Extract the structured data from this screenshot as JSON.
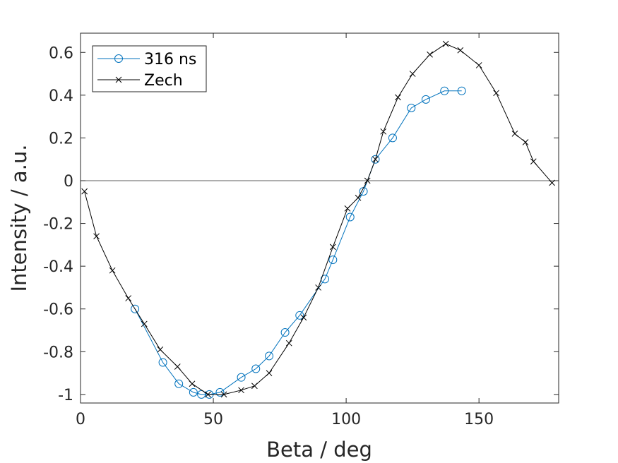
{
  "chart_data": {
    "type": "line",
    "title": "",
    "xlabel": "Beta / deg",
    "ylabel": "Intensity / a.u.",
    "xlim": [
      0,
      180
    ],
    "ylim": [
      -1.04,
      0.69
    ],
    "xticks": [
      0,
      50,
      100,
      150
    ],
    "yticks": [
      -1,
      -0.8,
      -0.6,
      -0.4,
      -0.2,
      0,
      0.2,
      0.4,
      0.6
    ],
    "xtick_labels": [
      "0",
      "50",
      "100",
      "150"
    ],
    "ytick_labels": [
      "-1",
      "-0.8",
      "-0.6",
      "-0.4",
      "-0.2",
      "0",
      "0.2",
      "0.4",
      "0.6"
    ],
    "zero_line": true,
    "grid": false,
    "legend_position": "top-left",
    "series": [
      {
        "name": "316 ns",
        "color": "#0072BD",
        "marker": "circle",
        "x": [
          20.5,
          31,
          37,
          42.5,
          45.5,
          48.5,
          52.5,
          60.5,
          66,
          71,
          77,
          82.5,
          92,
          95,
          101.5,
          106.5,
          111,
          117.5,
          124.5,
          130,
          137,
          143.5
        ],
        "y": [
          -0.6,
          -0.85,
          -0.95,
          -0.99,
          -1.0,
          -1.0,
          -0.99,
          -0.92,
          -0.88,
          -0.82,
          -0.71,
          -0.63,
          -0.46,
          -0.37,
          -0.17,
          -0.05,
          0.1,
          0.2,
          0.34,
          0.38,
          0.42,
          0.42
        ]
      },
      {
        "name": "Zech",
        "color": "#000000",
        "marker": "x",
        "x": [
          1.5,
          6,
          12,
          18,
          24,
          30,
          36.5,
          42,
          48,
          54,
          60.5,
          65.5,
          71,
          78.5,
          84,
          89.5,
          95,
          100.5,
          104.5,
          108,
          111,
          114,
          119.5,
          125,
          131.5,
          137.5,
          143,
          150,
          156.5,
          163.5,
          167.5,
          170.5,
          177.5
        ],
        "y": [
          -0.05,
          -0.26,
          -0.42,
          -0.55,
          -0.67,
          -0.79,
          -0.87,
          -0.95,
          -1.0,
          -1.0,
          -0.98,
          -0.96,
          -0.9,
          -0.76,
          -0.64,
          -0.5,
          -0.31,
          -0.13,
          -0.08,
          0.0,
          0.1,
          0.23,
          0.39,
          0.5,
          0.59,
          0.64,
          0.61,
          0.54,
          0.41,
          0.22,
          0.18,
          0.09,
          -0.01
        ]
      }
    ]
  }
}
